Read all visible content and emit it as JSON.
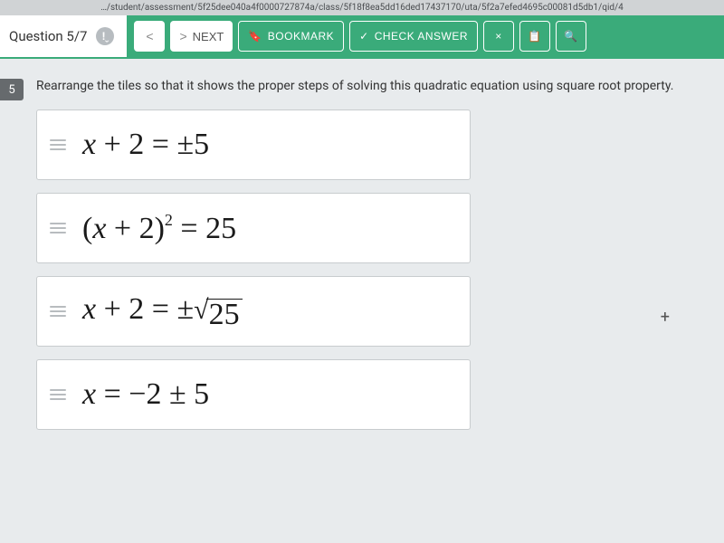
{
  "url": "…/student/assessment/5f25dee040a4f0000727874a/class/5f18f8ea5dd16ded17437170/uta/5f2a7efed4695c00081d5db1/qid/4",
  "header": {
    "question_counter": "Question 5/7",
    "prev_glyph": "<",
    "next_glyph": ">",
    "next_label": "NEXT",
    "bookmark_label": "BOOKMARK",
    "check_label": "CHECK ANSWER",
    "close_glyph": "×",
    "calendar_glyph": "🗓",
    "search_glyph": "🔍"
  },
  "question": {
    "number": "5",
    "prompt": "Rearrange the tiles so that it shows the proper steps of solving this quadratic equation using square root property."
  },
  "tiles": [
    {
      "html_type": "plain_pm5",
      "x": "x",
      "plus": " + 2 = ±5"
    },
    {
      "html_type": "squared25",
      "x": "x",
      "open": "(",
      "mid": " + 2)",
      "exp": "2",
      "eq": " = 25"
    },
    {
      "html_type": "sqrt25",
      "x": "x",
      "lead": " + 2 = ±",
      "rad": "√",
      "under": "25"
    },
    {
      "html_type": "final",
      "x": "x",
      "rest": " = −2 ± 5"
    }
  ],
  "colors": {
    "accent": "#3aab7a",
    "bg": "#e8ebed",
    "tile_border": "#c8ccce"
  }
}
